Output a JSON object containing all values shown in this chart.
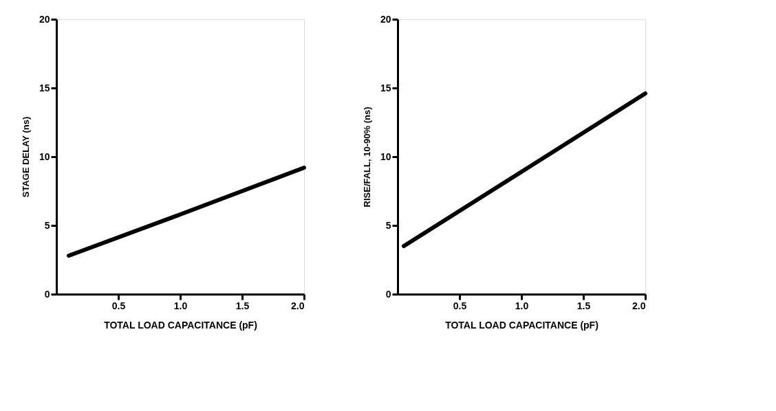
{
  "chart_data": [
    {
      "type": "line",
      "xlabel": "TOTAL LOAD CAPACITANCE (pF)",
      "ylabel": "STAGE DELAY (ns)",
      "x": [
        0.1,
        1.0,
        2.0
      ],
      "series": [
        {
          "color": "#000000",
          "values": [
            2.8,
            5.8,
            9.2
          ]
        }
      ],
      "xlim": [
        0,
        2.0
      ],
      "xticks": [
        {
          "value": 0.5,
          "label": "0.5"
        },
        {
          "value": 1.0,
          "label": "1.0"
        },
        {
          "value": 1.5,
          "label": "1.5"
        },
        {
          "value": 2.0,
          "label": "2.0"
        }
      ],
      "ylim": [
        0,
        20
      ],
      "yticks": [
        0,
        5,
        10,
        15,
        20
      ],
      "grid": false
    },
    {
      "type": "line",
      "xlabel": "TOTAL LOAD CAPACITANCE (pF)",
      "ylabel": "RISE/FALL, 10-90% (ns)",
      "x": [
        0.05,
        1.0,
        2.0
      ],
      "series": [
        {
          "color": "#000000",
          "values": [
            3.5,
            8.9,
            14.6
          ]
        }
      ],
      "xlim": [
        0,
        2.0
      ],
      "xticks": [
        {
          "value": 0.5,
          "label": "0.5"
        },
        {
          "value": 1.0,
          "label": "1.0"
        },
        {
          "value": 1.5,
          "label": "1.5"
        },
        {
          "value": 2.0,
          "label": "2.0"
        }
      ],
      "ylim": [
        0,
        20
      ],
      "yticks": [
        0,
        5,
        10,
        15,
        20
      ],
      "grid": false
    }
  ]
}
